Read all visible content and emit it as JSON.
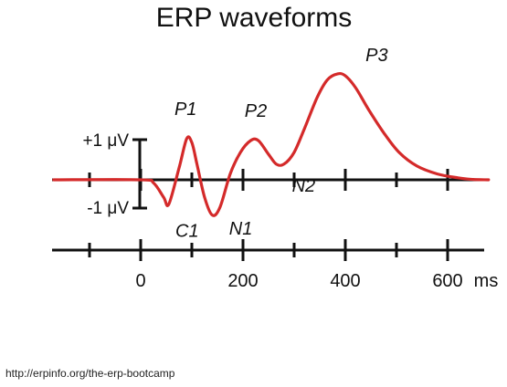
{
  "title": "ERP waveforms",
  "source_url": "http://erpinfo.org/the-erp-bootcamp",
  "scale_bar": {
    "plus_label": "+1 μV",
    "minus_label": "-1 μV"
  },
  "time_axis": {
    "unit": "ms",
    "ticks_ms": [
      -100,
      0,
      100,
      200,
      300,
      400,
      500,
      600
    ],
    "labels": [
      {
        "ms": 0,
        "text": "0"
      },
      {
        "ms": 200,
        "text": "200"
      },
      {
        "ms": 400,
        "text": "400"
      },
      {
        "ms": 600,
        "text": "600"
      }
    ],
    "unit_label": "ms"
  },
  "colors": {
    "waveform": "#d42a2a",
    "axes": "#111111"
  },
  "chart_data": {
    "type": "line",
    "title": "ERP waveforms",
    "xlabel": "ms",
    "ylabel": "",
    "xlim": [
      -170,
      680
    ],
    "ylim": [
      -1.2,
      2.9
    ],
    "series": [
      {
        "x": [
          -170,
          0,
          25,
          45,
          55,
          75,
          90,
          100,
          110,
          125,
          140,
          155,
          175,
          195,
          215,
          230,
          250,
          265,
          280,
          300,
          320,
          345,
          365,
          385,
          400,
          420,
          445,
          475,
          505,
          540,
          580,
          620,
          650,
          680
        ],
        "y": [
          0,
          0,
          -0.08,
          -0.45,
          -0.62,
          0.3,
          1.05,
          0.95,
          0.4,
          -0.45,
          -0.9,
          -0.7,
          0.15,
          0.7,
          1.0,
          1.0,
          0.65,
          0.4,
          0.4,
          0.7,
          1.3,
          2.1,
          2.55,
          2.7,
          2.65,
          2.35,
          1.8,
          1.2,
          0.7,
          0.35,
          0.15,
          0.05,
          0.01,
          0
        ]
      }
    ],
    "components": [
      {
        "label": "C1",
        "ms": 55
      },
      {
        "label": "P1",
        "ms": 95
      },
      {
        "label": "N1",
        "ms": 160
      },
      {
        "label": "P2",
        "ms": 225
      },
      {
        "label": "N2",
        "ms": 290
      },
      {
        "label": "P3",
        "ms": 390
      }
    ]
  }
}
